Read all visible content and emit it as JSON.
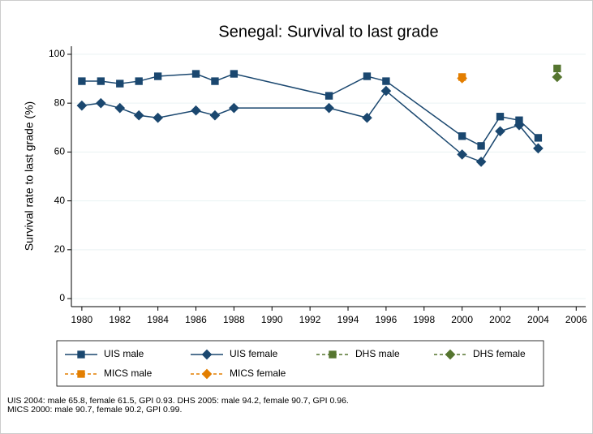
{
  "chart_data": {
    "type": "line",
    "title": "Senegal: Survival to last grade",
    "ylabel": "Survival rate to last grade (%)",
    "xlim": [
      1979.45,
      2006.5
    ],
    "xticks": [
      1980,
      1982,
      1984,
      1986,
      1988,
      1990,
      1992,
      1994,
      1996,
      1998,
      2000,
      2002,
      2004,
      2006
    ],
    "ylim": [
      -3.3,
      103.3
    ],
    "yticks": [
      0,
      20,
      40,
      60,
      80,
      100
    ],
    "grid": true,
    "series": [
      {
        "name": "UIS male",
        "color": "#1a476f",
        "marker": "square",
        "dashed": false,
        "x": [
          1980,
          1981,
          1982,
          1983,
          1984,
          1986,
          1987,
          1988,
          1993,
          1995,
          1996,
          2000,
          2001,
          2002,
          2003,
          2004
        ],
        "values": [
          89,
          89,
          88,
          89,
          91,
          92,
          89,
          92,
          83,
          91,
          89,
          66.5,
          62.5,
          74.5,
          73,
          65.8
        ]
      },
      {
        "name": "UIS female",
        "color": "#1a476f",
        "marker": "diamond",
        "dashed": false,
        "x": [
          1980,
          1981,
          1982,
          1983,
          1984,
          1986,
          1987,
          1988,
          1993,
          1995,
          1996,
          2000,
          2001,
          2002,
          2003,
          2004
        ],
        "values": [
          79,
          80,
          78,
          75,
          74,
          77,
          75,
          78,
          78,
          74,
          85,
          59,
          56,
          68.5,
          71,
          61.5
        ]
      },
      {
        "name": "DHS male",
        "color": "#55752f",
        "marker": "square",
        "dashed": true,
        "x": [
          2005
        ],
        "values": [
          94.2
        ]
      },
      {
        "name": "DHS female",
        "color": "#55752f",
        "marker": "diamond",
        "dashed": true,
        "x": [
          2005
        ],
        "values": [
          90.7
        ]
      },
      {
        "name": "MICS male",
        "color": "#e37e00",
        "marker": "square",
        "dashed": true,
        "x": [
          2000
        ],
        "values": [
          90.7
        ]
      },
      {
        "name": "MICS female",
        "color": "#e37e00",
        "marker": "diamond",
        "dashed": true,
        "x": [
          2000
        ],
        "values": [
          90.2
        ]
      }
    ],
    "notes": [
      "UIS 2004: male 65.8, female 61.5, GPI 0.93. DHS 2005: male 94.2, female 90.7, GPI 0.96.",
      "MICS 2000: male 90.7, female 90.2, GPI 0.99."
    ]
  }
}
